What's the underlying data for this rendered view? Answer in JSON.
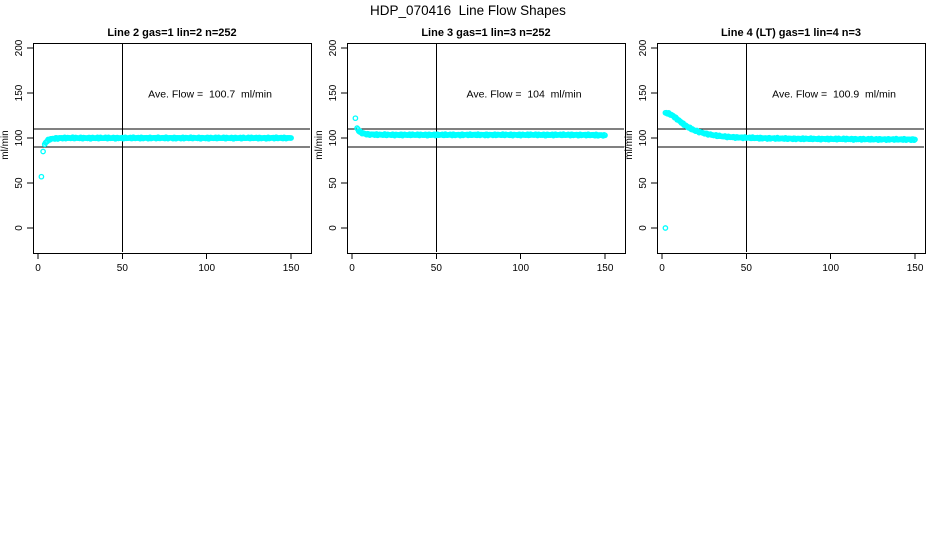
{
  "figure": {
    "title": "HDP_070416  Line Flow Shapes",
    "background": "#FFFFFF",
    "marker_color": "#00FFFF",
    "axis_color": "#000000"
  },
  "chart_data": [
    {
      "type": "scatter",
      "title": "Line 2 gas=1 lin=2 n=252",
      "ylabel": "ml/min",
      "xlabel": "",
      "annotation": "Ave. Flow =  100.7  ml/min",
      "ave_flow_ml_min": 100.7,
      "n": 252,
      "xticks": [
        0,
        50,
        100,
        150
      ],
      "yticks": [
        0,
        50,
        100,
        150,
        200
      ],
      "xlim": [
        -3,
        162
      ],
      "ylim": [
        -33,
        206
      ],
      "grid": false,
      "ref_hlines": [
        110,
        90
      ],
      "ref_vline": 50,
      "sample_interval_x": 0.6,
      "marker": "open-circle",
      "annotation_xy": [
        102,
        145
      ],
      "isolated_points": [
        [
          2,
          57
        ],
        [
          3,
          85
        ]
      ],
      "points": [
        [
          4,
          93
        ],
        [
          5,
          96
        ],
        [
          6,
          97.5
        ],
        [
          7,
          98.5
        ],
        [
          8,
          99
        ],
        [
          10,
          99.5
        ],
        [
          14,
          100
        ],
        [
          20,
          100
        ],
        [
          30,
          100
        ],
        [
          40,
          100
        ],
        [
          50,
          100
        ],
        [
          60,
          100
        ],
        [
          70,
          100
        ],
        [
          80,
          100
        ],
        [
          90,
          100
        ],
        [
          100,
          100
        ],
        [
          110,
          100
        ],
        [
          120,
          100
        ],
        [
          130,
          100
        ],
        [
          140,
          100
        ],
        [
          150,
          100
        ]
      ]
    },
    {
      "type": "scatter",
      "title": "Line 3 gas=1 lin=3 n=252",
      "ylabel": "ml/min",
      "xlabel": "",
      "annotation": "Ave. Flow =  104  ml/min",
      "ave_flow_ml_min": 104,
      "n": 252,
      "xticks": [
        0,
        50,
        100,
        150
      ],
      "yticks": [
        0,
        50,
        100,
        150,
        200
      ],
      "xlim": [
        -3,
        162
      ],
      "ylim": [
        -33,
        206
      ],
      "grid": false,
      "ref_hlines": [
        110,
        90
      ],
      "ref_vline": 50,
      "sample_interval_x": 0.6,
      "marker": "open-circle",
      "annotation_xy": [
        102,
        145
      ],
      "isolated_points": [
        [
          2,
          122
        ]
      ],
      "points": [
        [
          3,
          111
        ],
        [
          4,
          108
        ],
        [
          5,
          106.5
        ],
        [
          6,
          105.5
        ],
        [
          7,
          105
        ],
        [
          8,
          104.5
        ],
        [
          10,
          104
        ],
        [
          14,
          103.8
        ],
        [
          20,
          103.5
        ],
        [
          30,
          103.5
        ],
        [
          40,
          103.5
        ],
        [
          50,
          103.5
        ],
        [
          60,
          103.5
        ],
        [
          70,
          103.5
        ],
        [
          80,
          103.5
        ],
        [
          90,
          103.5
        ],
        [
          100,
          103.5
        ],
        [
          110,
          103.5
        ],
        [
          120,
          103.5
        ],
        [
          130,
          103.5
        ],
        [
          140,
          103.3
        ],
        [
          150,
          103
        ]
      ]
    },
    {
      "type": "scatter",
      "title": "Line 4 (LT) gas=1 lin=4 n=3",
      "ylabel": "ml/min",
      "xlabel": "",
      "annotation": "Ave. Flow =  100.9  ml/min",
      "ave_flow_ml_min": 100.9,
      "n": 3,
      "xticks": [
        0,
        50,
        100,
        150
      ],
      "yticks": [
        0,
        50,
        100,
        150,
        200
      ],
      "xlim": [
        -3,
        162
      ],
      "ylim": [
        -33,
        206
      ],
      "grid": false,
      "ref_hlines": [
        110,
        90
      ],
      "ref_vline": 50,
      "sample_interval_x": 0.6,
      "marker": "open-circle",
      "annotation_xy": [
        102,
        145
      ],
      "isolated_points": [
        [
          2,
          0
        ]
      ],
      "points": [
        [
          2,
          128
        ],
        [
          3,
          127.5
        ],
        [
          4,
          127
        ],
        [
          5,
          126.2
        ],
        [
          6,
          125.2
        ],
        [
          7,
          124
        ],
        [
          8,
          122.5
        ],
        [
          9,
          121
        ],
        [
          10,
          119.5
        ],
        [
          11,
          118
        ],
        [
          12,
          116.5
        ],
        [
          13,
          115
        ],
        [
          14,
          113.8
        ],
        [
          15,
          112.6
        ],
        [
          16,
          111.5
        ],
        [
          17,
          110.5
        ],
        [
          18,
          109.5
        ],
        [
          19,
          108.7
        ],
        [
          20,
          108
        ],
        [
          22,
          106.8
        ],
        [
          24,
          105.8
        ],
        [
          26,
          104.8
        ],
        [
          28,
          104
        ],
        [
          30,
          103.3
        ],
        [
          32,
          102.7
        ],
        [
          34,
          102.2
        ],
        [
          36,
          101.8
        ],
        [
          38,
          101.4
        ],
        [
          40,
          101.1
        ],
        [
          44,
          100.7
        ],
        [
          48,
          100.4
        ],
        [
          52,
          100.2
        ],
        [
          56,
          100
        ],
        [
          60,
          99.8
        ],
        [
          66,
          99.6
        ],
        [
          72,
          99.4
        ],
        [
          80,
          99.2
        ],
        [
          90,
          99
        ],
        [
          100,
          98.9
        ],
        [
          110,
          98.8
        ],
        [
          120,
          98.6
        ],
        [
          130,
          98.5
        ],
        [
          140,
          98.4
        ],
        [
          150,
          98.3
        ]
      ]
    }
  ]
}
